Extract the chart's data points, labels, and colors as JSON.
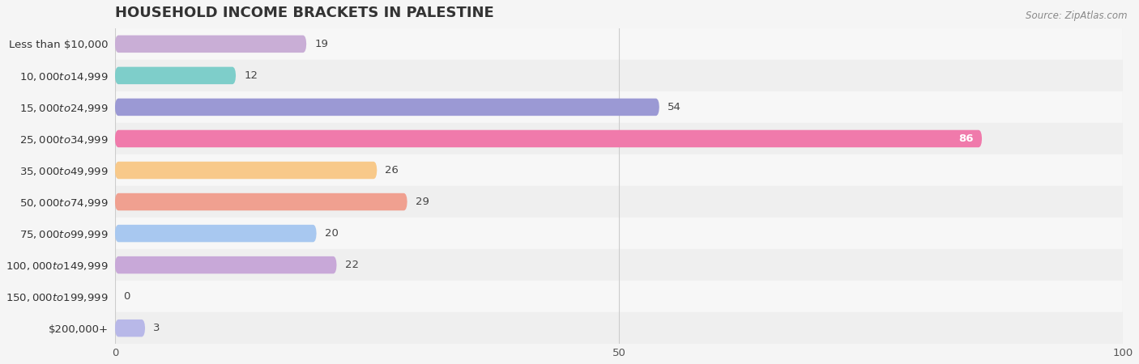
{
  "title": "HOUSEHOLD INCOME BRACKETS IN PALESTINE",
  "source": "Source: ZipAtlas.com",
  "categories": [
    "Less than $10,000",
    "$10,000 to $14,999",
    "$15,000 to $24,999",
    "$25,000 to $34,999",
    "$35,000 to $49,999",
    "$50,000 to $74,999",
    "$75,000 to $99,999",
    "$100,000 to $149,999",
    "$150,000 to $199,999",
    "$200,000+"
  ],
  "values": [
    19,
    12,
    54,
    86,
    26,
    29,
    20,
    22,
    0,
    3
  ],
  "bar_colors": [
    "#c9aed6",
    "#7ececa",
    "#9b99d4",
    "#f07aab",
    "#f8c98a",
    "#f0a090",
    "#a8c8f0",
    "#c8a8d8",
    "#7ececa",
    "#b8b8e8"
  ],
  "row_bg_light": "#f7f7f7",
  "row_bg_dark": "#efefef",
  "xlim": [
    0,
    100
  ],
  "xlabel_ticks": [
    0,
    50,
    100
  ],
  "title_fontsize": 13,
  "label_fontsize": 9.5,
  "value_fontsize": 9.5,
  "bar_height": 0.55,
  "value_inside_threshold": 80
}
